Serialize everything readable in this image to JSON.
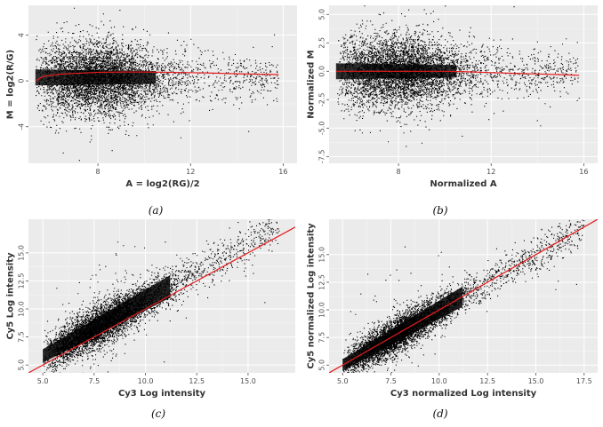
{
  "figure": {
    "captions": [
      "(a)",
      "(b)",
      "(c)",
      "(d)"
    ]
  },
  "colors": {
    "panel_background": "#ebebeb",
    "points": "#000000",
    "fit_line": "#e41a1c"
  },
  "chart_data": [
    {
      "type": "scatter",
      "caption": "(a)",
      "xlabel": "A = log2(RG)/2",
      "ylabel": "M = log2(R/G)",
      "xlim": [
        5.0,
        16.6
      ],
      "ylim": [
        -7.2,
        6.6
      ],
      "xticks": [
        8,
        12,
        16
      ],
      "xtick_labels": [
        "8",
        "12",
        "16"
      ],
      "yticks": [
        -4,
        0,
        4
      ],
      "ytick_labels": [
        "-4",
        "0",
        "4"
      ],
      "grid": true,
      "point_cloud": {
        "center_y": 0.3,
        "core_x_range": [
          5.3,
          12.0
        ],
        "spread_y": 1.2,
        "tail_x_max": 15.8
      },
      "fit_line": {
        "name": "",
        "x": [
          5.3,
          5.6,
          6.0,
          6.5,
          7.0,
          8.0,
          9.0,
          10.0,
          11.0,
          12.0,
          13.0,
          14.0,
          15.0,
          15.8
        ],
        "y": [
          0.0,
          0.35,
          0.5,
          0.6,
          0.65,
          0.75,
          0.78,
          0.78,
          0.75,
          0.72,
          0.68,
          0.62,
          0.58,
          0.55
        ]
      }
    },
    {
      "type": "scatter",
      "caption": "(b)",
      "xlabel": "Normalized A",
      "ylabel": "Normalized M",
      "xlim": [
        5.0,
        16.6
      ],
      "ylim": [
        -8.1,
        5.8
      ],
      "xticks": [
        8,
        12,
        16
      ],
      "xtick_labels": [
        "8",
        "12",
        "16"
      ],
      "yticks": [
        -7.5,
        -5.0,
        -2.5,
        0.0,
        2.5,
        5.0
      ],
      "ytick_labels": [
        "-7.5",
        "-5.0",
        "-2.5",
        "0.0",
        "2.5",
        "5.0"
      ],
      "grid": true,
      "point_cloud": {
        "center_y": 0.0,
        "core_x_range": [
          5.3,
          12.0
        ],
        "spread_y": 1.2,
        "tail_x_max": 15.8
      },
      "fit_line": {
        "name": "",
        "x": [
          5.3,
          6.0,
          7.0,
          8.0,
          9.0,
          10.0,
          11.0,
          12.0,
          13.0,
          14.0,
          15.0,
          15.8
        ],
        "y": [
          0.0,
          0.0,
          0.0,
          0.0,
          0.0,
          0.0,
          -0.05,
          -0.12,
          -0.18,
          -0.24,
          -0.3,
          -0.35
        ]
      }
    },
    {
      "type": "scatter",
      "caption": "(c)",
      "xlabel": "Cy3 Log intensity",
      "ylabel": "Cy5 Log intensity",
      "xlim": [
        4.3,
        17.3
      ],
      "ylim": [
        4.3,
        18.0
      ],
      "xticks": [
        5.0,
        7.5,
        10.0,
        12.5,
        15.0
      ],
      "xtick_labels": [
        "5.0",
        "7.5",
        "10.0",
        "12.5",
        "15.0"
      ],
      "yticks": [
        5.0,
        7.5,
        10.0,
        12.5,
        15.0
      ],
      "ytick_labels": [
        "5.0",
        "7.5",
        "10.0",
        "12.5",
        "15.0"
      ],
      "grid": true,
      "point_cloud": {
        "offset": 0.8,
        "core_x_range": [
          5.0,
          12.0
        ],
        "spread": 0.9,
        "tail_x_max": 16.5
      },
      "fit_line": {
        "name": "",
        "x": [
          4.3,
          17.3
        ],
        "y": [
          4.3,
          17.3
        ]
      }
    },
    {
      "type": "scatter",
      "caption": "(d)",
      "xlabel": "Cy3 normalized Log intensity",
      "ylabel": "Cy5 normalized Log intensity",
      "xlim": [
        4.3,
        18.2
      ],
      "ylim": [
        4.3,
        18.2
      ],
      "xticks": [
        5.0,
        7.5,
        10.0,
        12.5,
        15.0,
        17.5
      ],
      "xtick_labels": [
        "5.0",
        "7.5",
        "10.0",
        "12.5",
        "15.0",
        "17.5"
      ],
      "yticks": [
        5.0,
        7.5,
        10.0,
        12.5,
        15.0
      ],
      "ytick_labels": [
        "5.0",
        "7.5",
        "10.0",
        "12.5",
        "15.0"
      ],
      "grid": true,
      "point_cloud": {
        "offset": 0.0,
        "core_x_range": [
          5.0,
          12.0
        ],
        "spread": 0.8,
        "tail_x_max": 17.5
      },
      "fit_line": {
        "name": "",
        "x": [
          4.3,
          18.2
        ],
        "y": [
          4.3,
          18.2
        ]
      }
    }
  ]
}
